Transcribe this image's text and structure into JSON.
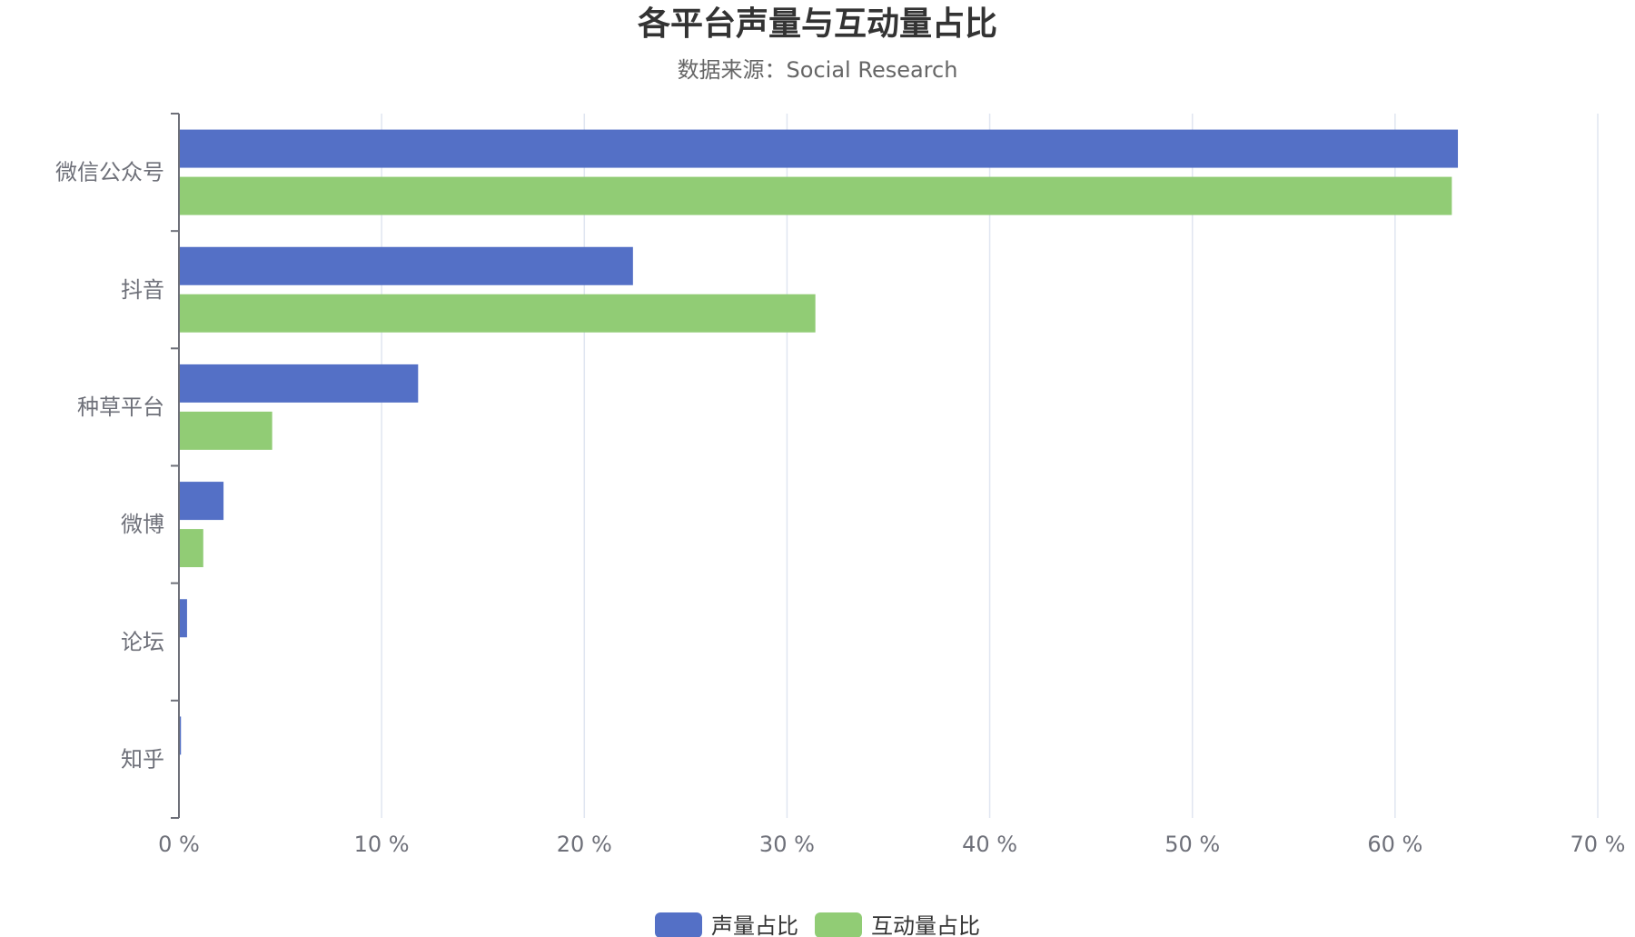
{
  "colors": {
    "series_1": "#5470c6",
    "series_2": "#91cc75",
    "text": "#333333",
    "subtext": "#666666",
    "axis": "#6e7079",
    "grid": "#e0e6f1",
    "background": "#ffffff"
  },
  "chart_data": {
    "type": "bar",
    "orientation": "horizontal",
    "title": "各平台声量与互动量占比",
    "subtitle": "数据来源：Social Research",
    "categories": [
      "微信公众号",
      "抖音",
      "种草平台",
      "微博",
      "论坛",
      "知乎"
    ],
    "series": [
      {
        "name": "声量占比",
        "values": [
          63.1,
          22.4,
          11.8,
          2.2,
          0.4,
          0.1
        ]
      },
      {
        "name": "互动量占比",
        "values": [
          62.8,
          31.4,
          4.6,
          1.2,
          0.0,
          0.0
        ]
      }
    ],
    "xlim": [
      0,
      70
    ],
    "x_ticks": [
      0,
      10,
      20,
      30,
      40,
      50,
      60,
      70
    ],
    "x_tick_labels": [
      "0 %",
      "10 %",
      "20 %",
      "30 %",
      "40 %",
      "50 %",
      "60 %",
      "70 %"
    ],
    "xlabel": "",
    "ylabel": "",
    "grid": "vertical",
    "legend_position": "bottom-center"
  }
}
